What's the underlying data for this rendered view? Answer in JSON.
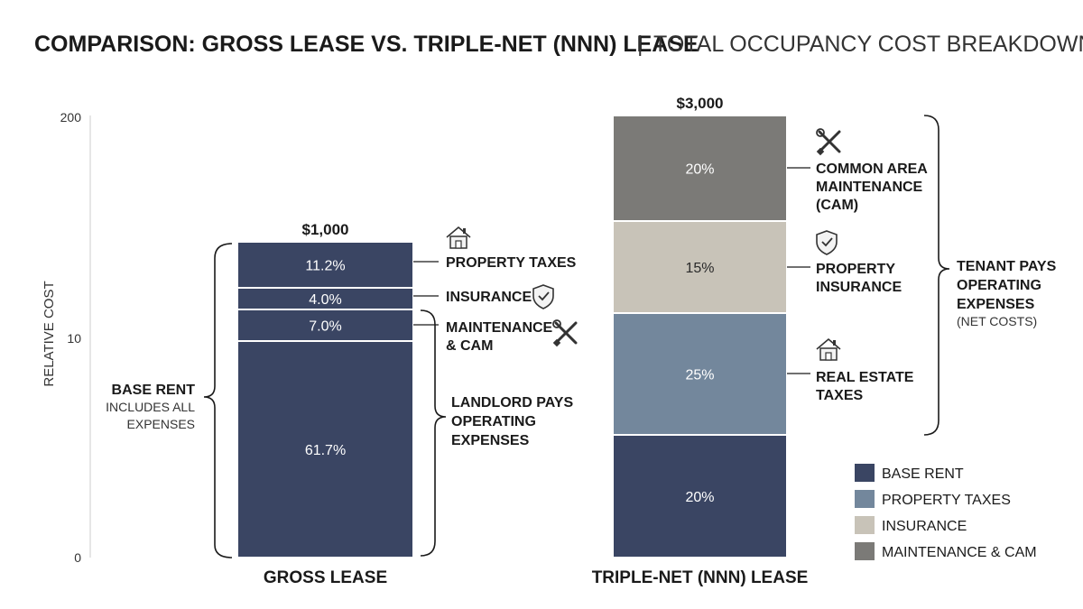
{
  "title": {
    "bold": "COMPARISON: GROSS LEASE VS. TRIPLE-NET (NNN) LEASE",
    "separator": "|",
    "light": "TOTAL OCCUPANCY COST BREAKDOWN"
  },
  "chart_data": {
    "type": "bar",
    "stacked": true,
    "ylabel": "RELATIVE COST",
    "yticks": [
      "0",
      "10",
      "200"
    ],
    "grid": false,
    "legend_position": "bottom-right",
    "bars": [
      {
        "category": "GROSS LEASE",
        "total_label": "$1,000",
        "segments": [
          {
            "series": "BASE RENT",
            "label": "61.7%",
            "color": "#3a4563",
            "text_color": "#ffffff"
          },
          {
            "series": "MAINTENANCE & CAM",
            "label": "7.0%",
            "color": "#3a4563",
            "text_color": "#ffffff"
          },
          {
            "series": "INSURANCE",
            "label": "4.0%",
            "color": "#3a4563",
            "text_color": "#ffffff"
          },
          {
            "series": "PROPERTY TAXES",
            "label": "11.2%",
            "color": "#3a4563",
            "text_color": "#ffffff"
          }
        ]
      },
      {
        "category": "TRIPLE-NET (NNN) LEASE",
        "total_label": "$3,000",
        "segments": [
          {
            "series": "BASE RENT",
            "label": "20%",
            "color": "#3a4563",
            "text_color": "#ffffff"
          },
          {
            "series": "PROPERTY TAXES",
            "label": "25%",
            "color": "#73879c",
            "text_color": "#ffffff"
          },
          {
            "series": "INSURANCE",
            "label": "15%",
            "color": "#c8c3b8",
            "text_color": "#2a2a2a"
          },
          {
            "series": "MAINTENANCE & CAM",
            "label": "20%",
            "color": "#7b7a77",
            "text_color": "#ffffff"
          }
        ]
      }
    ],
    "legend": [
      {
        "label": "BASE RENT",
        "color": "#3a4563"
      },
      {
        "label": "PROPERTY TAXES",
        "color": "#73879c"
      },
      {
        "label": "INSURANCE",
        "color": "#c8c3b8"
      },
      {
        "label": "MAINTENANCE & CAM",
        "color": "#7b7a77"
      }
    ]
  },
  "annotations": {
    "gross_property_taxes": "PROPERTY TAXES",
    "gross_insurance": "INSURANCE",
    "gross_maintenance_1": "MAINTENANCE",
    "gross_maintenance_2": "& CAM",
    "base_rent_title": "BASE RENT",
    "base_rent_sub_1": "INCLUDES ALL",
    "base_rent_sub_2": "EXPENSES",
    "landlord_1": "LANDLORD PAYS",
    "landlord_2": "OPERATING",
    "landlord_3": "EXPENSES",
    "nnn_cam_1": "COMMON AREA",
    "nnn_cam_2": "MAINTENANCE",
    "nnn_cam_3": "(CAM)",
    "nnn_ins_1": "PROPERTY",
    "nnn_ins_2": "INSURANCE",
    "nnn_tax_1": "REAL ESTATE",
    "nnn_tax_2": "TAXES",
    "tenant_1": "TENANT PAYS",
    "tenant_2": "OPERATING",
    "tenant_3": "EXPENSES",
    "tenant_sub": "(NET COSTS)"
  },
  "icons": {
    "house": "house-icon",
    "shield": "shield-check-icon",
    "tools": "wrench-screwdriver-icon"
  }
}
